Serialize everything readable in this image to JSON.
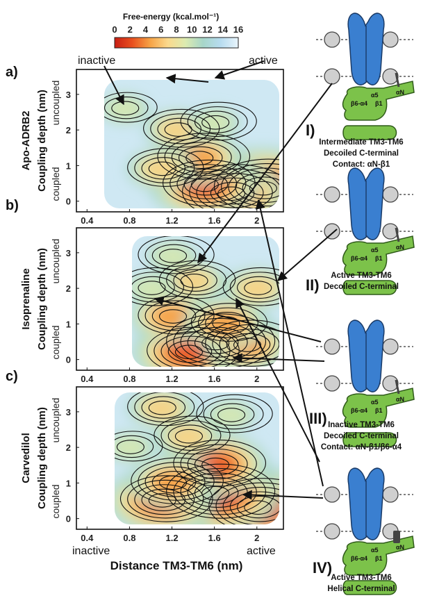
{
  "chart_data": {
    "type": "heatmap",
    "colorbar": {
      "title": "Free-energy (kcal.mol⁻¹)",
      "ticks": [
        "0",
        "2",
        "4",
        "6",
        "8",
        "10",
        "12",
        "14",
        "16"
      ],
      "range": [
        0,
        16
      ],
      "colors": [
        "#c81e14",
        "#e8501e",
        "#f6a245",
        "#fbd98c",
        "#dcebb0",
        "#a7d6c9",
        "#b7dcf0",
        "#e9f4fb"
      ]
    },
    "xlabel": "Distance TM3-TM6 (nm)",
    "xticks": [
      "0.4",
      "0.8",
      "1.2",
      "1.6",
      "2"
    ],
    "xlim": [
      0.3,
      2.25
    ],
    "ylabel": "Coupling depth (nm)",
    "yticks": [
      "0",
      "1",
      "2",
      "3"
    ],
    "ylim": [
      -0.3,
      3.7
    ],
    "ystates": {
      "top": "uncoupled",
      "bottom": "coupled"
    },
    "xstates": {
      "left": "inactive",
      "right": "active"
    },
    "annotations": {
      "inactive": "inactive",
      "active": "active"
    },
    "panels": [
      {
        "tag": "a)",
        "system": "Apo-ADRB2",
        "minima": [
          {
            "x": 2.05,
            "y": 0.35,
            "depth": 1.0
          },
          {
            "x": 1.75,
            "y": 0.2,
            "depth": 0.9
          },
          {
            "x": 1.5,
            "y": 0.45,
            "depth": 0.8
          },
          {
            "x": 1.45,
            "y": 1.2,
            "depth": 0.7
          },
          {
            "x": 1.1,
            "y": 0.9,
            "depth": 0.55
          },
          {
            "x": 1.25,
            "y": 2.0,
            "depth": 0.45
          },
          {
            "x": 1.6,
            "y": 2.2,
            "depth": 0.4
          },
          {
            "x": 0.75,
            "y": 2.6,
            "depth": 0.35
          }
        ]
      },
      {
        "tag": "b)",
        "system": "Isoprenaline",
        "minima": [
          {
            "x": 1.6,
            "y": 0.45,
            "depth": 1.0
          },
          {
            "x": 1.35,
            "y": 0.2,
            "depth": 0.85
          },
          {
            "x": 1.9,
            "y": 0.4,
            "depth": 0.7
          },
          {
            "x": 1.2,
            "y": 1.2,
            "depth": 0.6
          },
          {
            "x": 1.7,
            "y": 1.0,
            "depth": 0.6
          },
          {
            "x": 2.0,
            "y": 2.0,
            "depth": 0.5
          },
          {
            "x": 1.4,
            "y": 2.2,
            "depth": 0.5
          },
          {
            "x": 1.0,
            "y": 2.0,
            "depth": 0.4
          },
          {
            "x": 1.2,
            "y": 2.9,
            "depth": 0.4
          }
        ]
      },
      {
        "tag": "c)",
        "system": "Carvedilol",
        "minima": [
          {
            "x": 2.0,
            "y": 0.3,
            "depth": 1.0
          },
          {
            "x": 1.6,
            "y": 0.7,
            "depth": 0.95
          },
          {
            "x": 1.1,
            "y": 0.5,
            "depth": 0.85
          },
          {
            "x": 1.6,
            "y": 1.5,
            "depth": 0.75
          },
          {
            "x": 1.2,
            "y": 1.0,
            "depth": 0.65
          },
          {
            "x": 1.35,
            "y": 2.3,
            "depth": 0.55
          },
          {
            "x": 1.1,
            "y": 3.1,
            "depth": 0.5
          },
          {
            "x": 1.75,
            "y": 2.9,
            "depth": 0.4
          },
          {
            "x": 0.8,
            "y": 2.0,
            "depth": 0.35
          }
        ]
      }
    ]
  },
  "schematics": [
    {
      "roman": "I)",
      "caption": [
        "Intermediate TM3-TM6",
        "Decoiled C-terminal",
        "Contact: αN-β1"
      ],
      "ctail": "decoiled"
    },
    {
      "roman": "II)",
      "caption": [
        "Active TM3-TM6",
        "Decoiled C-terminal"
      ],
      "ctail": "decoiled"
    },
    {
      "roman": "III)",
      "caption": [
        "Inactive TM3-TM6",
        "Decoiled C-terminal",
        "Contact: αN-β1/β6-α4"
      ],
      "ctail": "decoiled"
    },
    {
      "roman": "IV)",
      "caption": [
        "Active TM3-TM6",
        "Helical C-terminal"
      ],
      "ctail": "helical"
    }
  ],
  "gprotein_labels": {
    "alphaN": "αN",
    "beta1": "β1",
    "alpha5": "α5",
    "beta6alpha4": "β6-α4"
  }
}
